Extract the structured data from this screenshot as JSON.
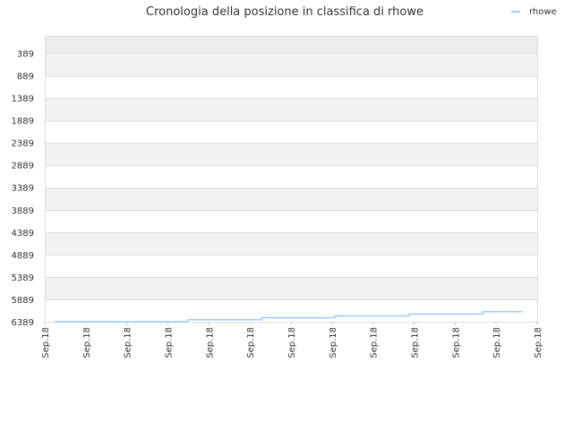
{
  "chart_data": {
    "type": "line",
    "title": "Cronologia della posizione in classifica di rhowe",
    "xlabel": "",
    "ylabel": "",
    "y_inverted": true,
    "ylim": [
      0,
      6389
    ],
    "ytick_labels": [
      "389",
      "889",
      "1389",
      "1889",
      "2389",
      "2889",
      "3389",
      "3889",
      "4389",
      "4889",
      "5389",
      "5889",
      "6389"
    ],
    "ytick_values": [
      389,
      889,
      1389,
      1889,
      2389,
      2889,
      3389,
      3889,
      4389,
      4889,
      5389,
      5889,
      6389
    ],
    "xtick_labels": [
      "Sep.18",
      "Sep.18",
      "Sep.18",
      "Sep.18",
      "Sep.18",
      "Sep.18",
      "Sep.18",
      "Sep.18",
      "Sep.18",
      "Sep.18",
      "Sep.18",
      "Sep.18",
      "Sep.18"
    ],
    "grid": true,
    "legend": {
      "position": "top-right",
      "entries": [
        "rhowe"
      ]
    },
    "colors": {
      "series": "#99ccff",
      "band": "#f2f2f2",
      "band_top": "#ececec",
      "grid": "#dddddd"
    },
    "series": [
      {
        "name": "rhowe",
        "x_fraction": [
          0.02,
          0.29,
          0.29,
          0.44,
          0.44,
          0.59,
          0.59,
          0.74,
          0.74,
          0.89,
          0.89,
          0.97
        ],
        "y": [
          6389,
          6389,
          6345,
          6345,
          6300,
          6300,
          6258,
          6258,
          6218,
          6218,
          6165,
          6165
        ]
      }
    ]
  }
}
